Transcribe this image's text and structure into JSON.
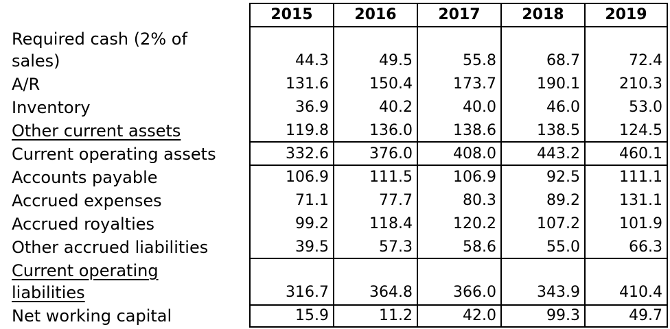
{
  "years": [
    "2015",
    "2016",
    "2017",
    "2018",
    "2019"
  ],
  "rows": [
    {
      "label_line1": "Required cash (2% of",
      "label_line2": "sales)",
      "values": [
        "44.3",
        "49.5",
        "55.8",
        "68.7",
        "72.4"
      ]
    },
    {
      "label": "A/R",
      "values": [
        "131.6",
        "150.4",
        "173.7",
        "190.1",
        "210.3"
      ]
    },
    {
      "label": "Inventory",
      "values": [
        "36.9",
        "40.2",
        "40.0",
        "46.0",
        "53.0"
      ]
    },
    {
      "label": "Other current assets",
      "values": [
        "119.8",
        "136.0",
        "138.6",
        "138.5",
        "124.5"
      ]
    },
    {
      "label": "Current operating assets",
      "values": [
        "332.6",
        "376.0",
        "408.0",
        "443.2",
        "460.1"
      ]
    },
    {
      "label": "Accounts payable",
      "values": [
        "106.9",
        "111.5",
        "106.9",
        "92.5",
        "111.1"
      ]
    },
    {
      "label": "Accrued expenses",
      "values": [
        "71.1",
        "77.7",
        "80.3",
        "89.2",
        "131.1"
      ]
    },
    {
      "label": "Accrued royalties",
      "values": [
        "99.2",
        "118.4",
        "120.2",
        "107.2",
        "101.9"
      ]
    },
    {
      "label": "Other accrued liabilities",
      "values": [
        "39.5",
        "57.3",
        "58.6",
        "55.0",
        "66.3"
      ]
    },
    {
      "label_line1": "Current operating",
      "label_line2": "liabilities",
      "values": [
        "316.7",
        "364.8",
        "366.0",
        "343.9",
        "410.4"
      ]
    },
    {
      "label": "Net working capital",
      "values": [
        "15.9",
        "11.2",
        "42.0",
        "99.3",
        "49.7"
      ]
    }
  ]
}
